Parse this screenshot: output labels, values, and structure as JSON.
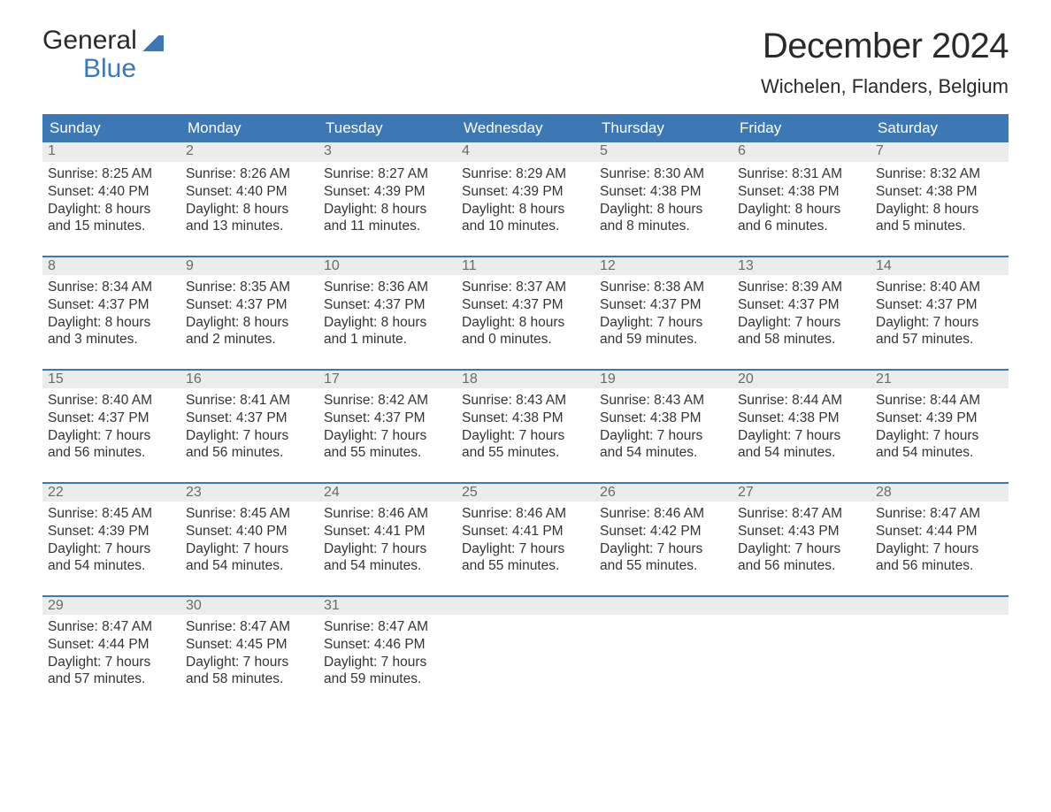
{
  "brand": {
    "general": "General",
    "blue": "Blue"
  },
  "title": "December 2024",
  "location": "Wichelen, Flanders, Belgium",
  "colors": {
    "header_bg": "#3d78b5",
    "header_text": "#ffffff",
    "band_bg": "#ececec",
    "daynum_text": "#6a6a6a",
    "body_text": "#333333",
    "page_bg": "#ffffff"
  },
  "day_headers": [
    "Sunday",
    "Monday",
    "Tuesday",
    "Wednesday",
    "Thursday",
    "Friday",
    "Saturday"
  ],
  "weeks": [
    [
      {
        "n": "1",
        "sr": "8:25 AM",
        "ss": "4:40 PM",
        "dl": "8 hours and 15 minutes."
      },
      {
        "n": "2",
        "sr": "8:26 AM",
        "ss": "4:40 PM",
        "dl": "8 hours and 13 minutes."
      },
      {
        "n": "3",
        "sr": "8:27 AM",
        "ss": "4:39 PM",
        "dl": "8 hours and 11 minutes."
      },
      {
        "n": "4",
        "sr": "8:29 AM",
        "ss": "4:39 PM",
        "dl": "8 hours and 10 minutes."
      },
      {
        "n": "5",
        "sr": "8:30 AM",
        "ss": "4:38 PM",
        "dl": "8 hours and 8 minutes."
      },
      {
        "n": "6",
        "sr": "8:31 AM",
        "ss": "4:38 PM",
        "dl": "8 hours and 6 minutes."
      },
      {
        "n": "7",
        "sr": "8:32 AM",
        "ss": "4:38 PM",
        "dl": "8 hours and 5 minutes."
      }
    ],
    [
      {
        "n": "8",
        "sr": "8:34 AM",
        "ss": "4:37 PM",
        "dl": "8 hours and 3 minutes."
      },
      {
        "n": "9",
        "sr": "8:35 AM",
        "ss": "4:37 PM",
        "dl": "8 hours and 2 minutes."
      },
      {
        "n": "10",
        "sr": "8:36 AM",
        "ss": "4:37 PM",
        "dl": "8 hours and 1 minute."
      },
      {
        "n": "11",
        "sr": "8:37 AM",
        "ss": "4:37 PM",
        "dl": "8 hours and 0 minutes."
      },
      {
        "n": "12",
        "sr": "8:38 AM",
        "ss": "4:37 PM",
        "dl": "7 hours and 59 minutes."
      },
      {
        "n": "13",
        "sr": "8:39 AM",
        "ss": "4:37 PM",
        "dl": "7 hours and 58 minutes."
      },
      {
        "n": "14",
        "sr": "8:40 AM",
        "ss": "4:37 PM",
        "dl": "7 hours and 57 minutes."
      }
    ],
    [
      {
        "n": "15",
        "sr": "8:40 AM",
        "ss": "4:37 PM",
        "dl": "7 hours and 56 minutes."
      },
      {
        "n": "16",
        "sr": "8:41 AM",
        "ss": "4:37 PM",
        "dl": "7 hours and 56 minutes."
      },
      {
        "n": "17",
        "sr": "8:42 AM",
        "ss": "4:37 PM",
        "dl": "7 hours and 55 minutes."
      },
      {
        "n": "18",
        "sr": "8:43 AM",
        "ss": "4:38 PM",
        "dl": "7 hours and 55 minutes."
      },
      {
        "n": "19",
        "sr": "8:43 AM",
        "ss": "4:38 PM",
        "dl": "7 hours and 54 minutes."
      },
      {
        "n": "20",
        "sr": "8:44 AM",
        "ss": "4:38 PM",
        "dl": "7 hours and 54 minutes."
      },
      {
        "n": "21",
        "sr": "8:44 AM",
        "ss": "4:39 PM",
        "dl": "7 hours and 54 minutes."
      }
    ],
    [
      {
        "n": "22",
        "sr": "8:45 AM",
        "ss": "4:39 PM",
        "dl": "7 hours and 54 minutes."
      },
      {
        "n": "23",
        "sr": "8:45 AM",
        "ss": "4:40 PM",
        "dl": "7 hours and 54 minutes."
      },
      {
        "n": "24",
        "sr": "8:46 AM",
        "ss": "4:41 PM",
        "dl": "7 hours and 54 minutes."
      },
      {
        "n": "25",
        "sr": "8:46 AM",
        "ss": "4:41 PM",
        "dl": "7 hours and 55 minutes."
      },
      {
        "n": "26",
        "sr": "8:46 AM",
        "ss": "4:42 PM",
        "dl": "7 hours and 55 minutes."
      },
      {
        "n": "27",
        "sr": "8:47 AM",
        "ss": "4:43 PM",
        "dl": "7 hours and 56 minutes."
      },
      {
        "n": "28",
        "sr": "8:47 AM",
        "ss": "4:44 PM",
        "dl": "7 hours and 56 minutes."
      }
    ],
    [
      {
        "n": "29",
        "sr": "8:47 AM",
        "ss": "4:44 PM",
        "dl": "7 hours and 57 minutes."
      },
      {
        "n": "30",
        "sr": "8:47 AM",
        "ss": "4:45 PM",
        "dl": "7 hours and 58 minutes."
      },
      {
        "n": "31",
        "sr": "8:47 AM",
        "ss": "4:46 PM",
        "dl": "7 hours and 59 minutes."
      },
      null,
      null,
      null,
      null
    ]
  ],
  "labels": {
    "sunrise": "Sunrise: ",
    "sunset": "Sunset: ",
    "daylight": "Daylight: "
  }
}
